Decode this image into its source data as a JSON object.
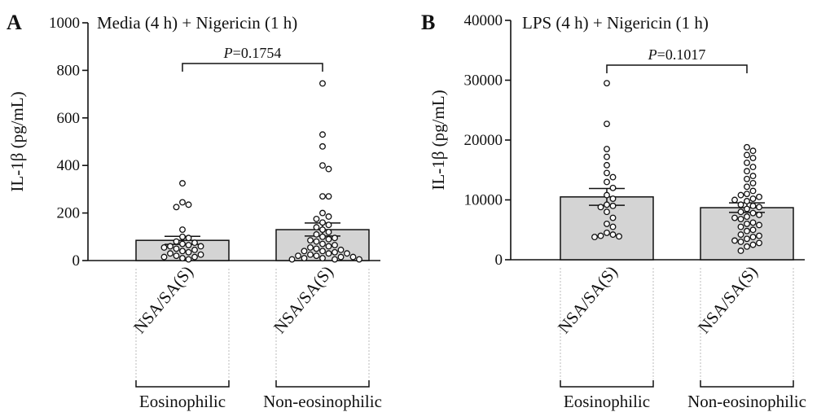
{
  "chart_data": [
    {
      "type": "bar",
      "panel": "A",
      "title": "Media (4 h) + Nigericin (1 h)",
      "ylabel": "IL-1β (pg/mL)",
      "ylim": [
        0,
        1000
      ],
      "yticks": [
        0,
        200,
        400,
        600,
        800,
        1000
      ],
      "categories": [
        "NSA/SA(S)",
        "NSA/SA(S)"
      ],
      "groups": [
        "Eosinophilic",
        "Non-eosinophilic"
      ],
      "values": [
        85,
        130
      ],
      "error_bars": [
        {
          "low": 68,
          "high": 102
        },
        {
          "low": 103,
          "high": 158
        }
      ],
      "points": [
        [
          325,
          245,
          235,
          225,
          130,
          100,
          95,
          80,
          75,
          70,
          65,
          60,
          60,
          55,
          50,
          45,
          40,
          35,
          30,
          25,
          20,
          15,
          15,
          10,
          5
        ],
        [
          745,
          530,
          480,
          400,
          385,
          270,
          270,
          200,
          185,
          175,
          160,
          150,
          140,
          130,
          120,
          110,
          100,
          95,
          90,
          85,
          80,
          70,
          65,
          60,
          55,
          50,
          45,
          40,
          40,
          35,
          30,
          30,
          25,
          20,
          20,
          15,
          15,
          10,
          10,
          5,
          5,
          5
        ]
      ],
      "annotation": {
        "p_label": "P",
        "p_value": "=0.1754"
      }
    },
    {
      "type": "bar",
      "panel": "B",
      "title": "LPS (4 h) + Nigericin (1 h)",
      "ylabel": "IL-1β (pg/mL)",
      "ylim": [
        0,
        40000
      ],
      "yticks": [
        0,
        10000,
        20000,
        30000,
        40000
      ],
      "categories": [
        "NSA/SA(S)",
        "NSA/SA(S)"
      ],
      "groups": [
        "Eosinophilic",
        "Non-eosinophilic"
      ],
      "values": [
        10500,
        8700
      ],
      "error_bars": [
        {
          "low": 9100,
          "high": 11900
        },
        {
          "low": 7900,
          "high": 9500
        }
      ],
      "points": [
        [
          29500,
          22700,
          18500,
          17200,
          15800,
          14500,
          13800,
          13000,
          12000,
          10800,
          10200,
          9200,
          9000,
          8800,
          8000,
          7000,
          6000,
          5500,
          4500,
          4200,
          4000,
          3900,
          3800
        ],
        [
          18800,
          18200,
          17500,
          17000,
          16200,
          15500,
          14800,
          14000,
          13500,
          12800,
          12200,
          11500,
          11000,
          10800,
          10500,
          10200,
          10000,
          9800,
          9200,
          9000,
          8800,
          8500,
          8000,
          7800,
          7500,
          7200,
          7000,
          6800,
          6200,
          6000,
          5800,
          5500,
          5000,
          4800,
          4200,
          4000,
          3800,
          3500,
          3200,
          3000,
          2800,
          2500,
          2200,
          1500
        ]
      ],
      "annotation": {
        "p_label": "P",
        "p_value": "=0.1017"
      }
    }
  ]
}
